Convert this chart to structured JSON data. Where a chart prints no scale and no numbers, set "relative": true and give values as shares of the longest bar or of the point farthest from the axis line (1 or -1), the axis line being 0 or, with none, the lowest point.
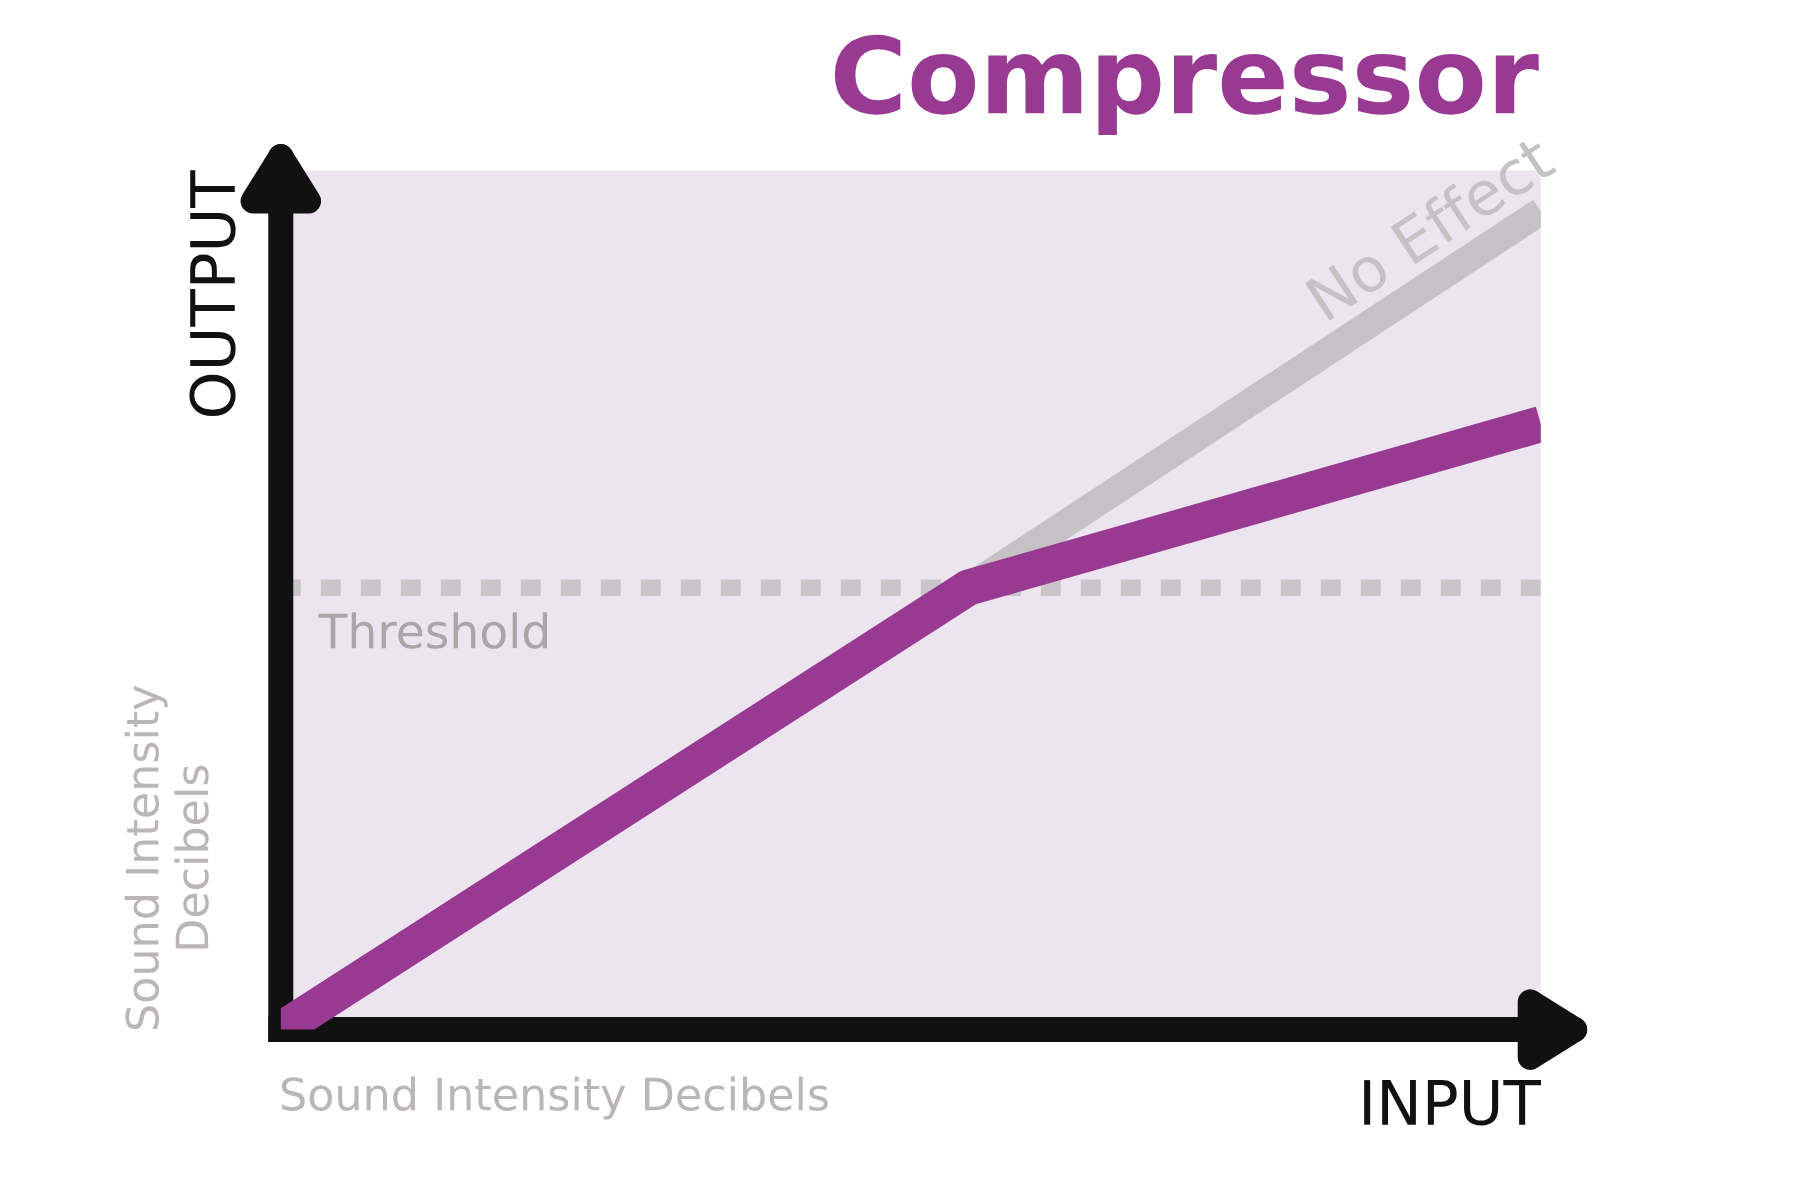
{
  "chart_data": {
    "type": "line",
    "title": "Compressor",
    "xlabel": "INPUT",
    "ylabel": "OUTPUT",
    "relative": true,
    "categories": [
      null,
      null,
      null,
      null,
      null,
      null,
      null,
      null,
      null,
      null,
      null,
      null
    ],
    "series": [
      {
        "name": "No Effect",
        "color": "#c4c2c4",
        "values": [
          null,
          null,
          null,
          null,
          null,
          null,
          0.54,
          null,
          null,
          null,
          null,
          1
        ]
      },
      {
        "color": "#983a91",
        "values": [
          0,
          null,
          null,
          null,
          null,
          null,
          0.54,
          null,
          null,
          null,
          null,
          0.74
        ]
      }
    ],
    "ref_lines": [
      {
        "axis": "y",
        "value": 0.54,
        "label": "Threshold",
        "color": "#c9c5c9",
        "line_style": "dashed"
      }
    ],
    "annotations": [
      "Sound Intensity Decibels",
      "Sound Intensity\nDecibels"
    ]
  }
}
